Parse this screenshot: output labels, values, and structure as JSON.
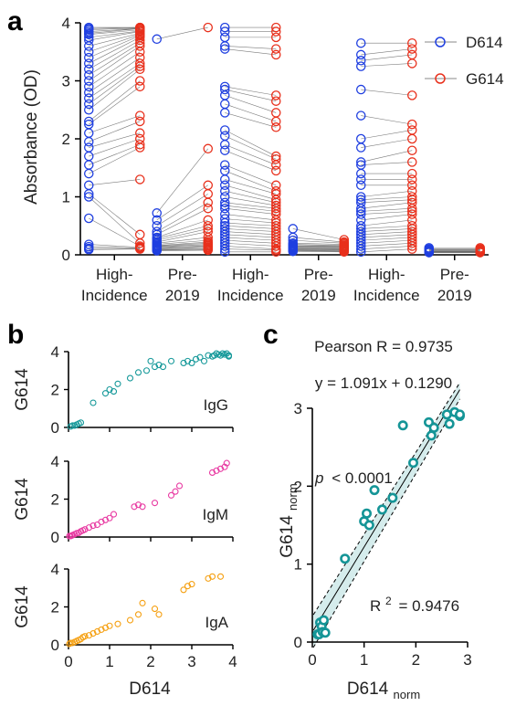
{
  "panels": {
    "a": {
      "letter": "a",
      "ylabel": "Absorbance (OD)",
      "yticks": [
        "0",
        "1",
        "2",
        "3",
        "4"
      ],
      "groups": [
        {
          "line1": "High-",
          "line2": "Incidence"
        },
        {
          "line1": "Pre-",
          "line2": "2019"
        },
        {
          "line1": "High-",
          "line2": "Incidence"
        },
        {
          "line1": "Pre-",
          "line2": "2019"
        },
        {
          "line1": "High-",
          "line2": "Incidence"
        },
        {
          "line1": "Pre-",
          "line2": "2019"
        }
      ],
      "legend": [
        "D614",
        "G614"
      ]
    },
    "b": {
      "letter": "b",
      "ylabel": "G614",
      "xlabel": "D614",
      "xticks": [
        "0",
        "1",
        "2",
        "3",
        "4"
      ],
      "yticks": [
        "0",
        "2",
        "4"
      ],
      "sub": [
        "IgG",
        "IgM",
        "IgA"
      ]
    },
    "c": {
      "letter": "c",
      "pearson": "Pearson R = 0.9735",
      "equation": "y = 1.091x + 0.1290",
      "p_label": "p",
      "p_value": "< 0.0001",
      "r2_label": "R",
      "r2_sup": "2",
      "r2_value": "= 0.9476",
      "ylabel_main": "G614",
      "ylabel_sub": "norm",
      "xlabel_main": "D614",
      "xlabel_sub": "norm",
      "xticks": [
        "0",
        "1",
        "2",
        "3"
      ],
      "yticks": [
        "0",
        "1",
        "2",
        "3"
      ]
    }
  },
  "colors": {
    "d614": "#1f3fe0",
    "g614": "#e8301c",
    "igg": "#16999a",
    "igm": "#e83aa2",
    "iga": "#f5a012",
    "teal": "#159597"
  },
  "chart_data": [
    {
      "type": "scatter",
      "panel": "a",
      "description_free": true,
      "ylabel": "Absorbance (OD)",
      "ylim": [
        0,
        4
      ],
      "categories": [
        "High-Incidence",
        "Pre-2019",
        "High-Incidence",
        "Pre-2019",
        "High-Incidence",
        "Pre-2019"
      ],
      "series": [
        {
          "name": "D614",
          "groups": [
            [
              3.92,
              3.9,
              3.88,
              3.85,
              3.82,
              3.8,
              3.75,
              3.7,
              3.6,
              3.5,
              3.4,
              3.3,
              3.2,
              3.1,
              3.0,
              2.9,
              2.8,
              2.7,
              2.6,
              2.5,
              2.3,
              2.25,
              2.1,
              1.95,
              1.85,
              1.7,
              1.55,
              1.4,
              1.2,
              1.05,
              1.0,
              0.63,
              0.18,
              0.14,
              0.11,
              0.09
            ],
            [
              3.72,
              0.72,
              0.6,
              0.5,
              0.4,
              0.35,
              0.3,
              0.28,
              0.25,
              0.22,
              0.2,
              0.18,
              0.16,
              0.15,
              0.14,
              0.13,
              0.12,
              0.11,
              0.1,
              0.09,
              0.08,
              0.07
            ],
            [
              3.92,
              3.85,
              3.75,
              3.6,
              3.55,
              2.9,
              2.85,
              2.75,
              2.6,
              2.45,
              2.15,
              2.05,
              1.9,
              1.8,
              1.55,
              1.45,
              1.3,
              1.2,
              1.1,
              1.0,
              0.9,
              0.85,
              0.8,
              0.7,
              0.62,
              0.55,
              0.5,
              0.45,
              0.4,
              0.35,
              0.3,
              0.25,
              0.2,
              0.15,
              0.1,
              0.05
            ],
            [
              0.45,
              0.3,
              0.25,
              0.2,
              0.18,
              0.16,
              0.15,
              0.14,
              0.13,
              0.12,
              0.11,
              0.1,
              0.09,
              0.08,
              0.07,
              0.06
            ],
            [
              3.65,
              3.45,
              3.35,
              3.25,
              2.85,
              2.4,
              2.0,
              1.85,
              1.6,
              1.55,
              1.4,
              1.3,
              1.2,
              1.0,
              0.95,
              0.9,
              0.8,
              0.75,
              0.7,
              0.6,
              0.5,
              0.45,
              0.4,
              0.35,
              0.3,
              0.25,
              0.2,
              0.15,
              0.1,
              0.05
            ],
            [
              0.12,
              0.1,
              0.09,
              0.08,
              0.07,
              0.06,
              0.05,
              0.05,
              0.04,
              0.04
            ]
          ]
        },
        {
          "name": "G614",
          "groups": [
            [
              3.92,
              3.92,
              3.91,
              3.9,
              3.9,
              3.88,
              3.86,
              3.85,
              3.82,
              3.8,
              3.78,
              3.75,
              3.7,
              3.65,
              3.6,
              3.5,
              3.4,
              3.3,
              3.25,
              3.2,
              3.0,
              2.9,
              2.4,
              2.3,
              2.1,
              2.0,
              1.9,
              1.85,
              1.3,
              0.35,
              0.2,
              0.15,
              0.13,
              0.12,
              0.11,
              0.1
            ],
            [
              3.92,
              1.83,
              1.2,
              1.05,
              0.9,
              0.8,
              0.6,
              0.5,
              0.45,
              0.4,
              0.3,
              0.25,
              0.22,
              0.2,
              0.18,
              0.16,
              0.15,
              0.13,
              0.12,
              0.1,
              0.09,
              0.08
            ],
            [
              3.92,
              3.85,
              3.75,
              3.55,
              3.45,
              2.75,
              2.65,
              2.45,
              2.3,
              2.2,
              1.7,
              1.65,
              1.55,
              1.45,
              1.2,
              1.1,
              1.05,
              0.95,
              0.9,
              0.85,
              0.8,
              0.75,
              0.7,
              0.6,
              0.55,
              0.5,
              0.45,
              0.4,
              0.35,
              0.3,
              0.25,
              0.2,
              0.15,
              0.1,
              0.08,
              0.05
            ],
            [
              0.26,
              0.22,
              0.2,
              0.18,
              0.16,
              0.15,
              0.14,
              0.13,
              0.12,
              0.11,
              0.1,
              0.09,
              0.08,
              0.07,
              0.06,
              0.05
            ],
            [
              3.65,
              3.55,
              3.45,
              3.3,
              2.75,
              2.25,
              2.15,
              2.0,
              1.8,
              1.6,
              1.4,
              1.3,
              1.2,
              1.1,
              1.0,
              0.95,
              0.9,
              0.8,
              0.75,
              0.7,
              0.6,
              0.5,
              0.45,
              0.4,
              0.35,
              0.3,
              0.25,
              0.2,
              0.15,
              0.1
            ],
            [
              0.12,
              0.1,
              0.09,
              0.08,
              0.07,
              0.06,
              0.05,
              0.05,
              0.04,
              0.04
            ]
          ]
        }
      ]
    },
    {
      "type": "scatter",
      "panel": "b",
      "xlabel": "D614",
      "ylabel": "G614",
      "xlim": [
        0,
        4
      ],
      "ylim": [
        0,
        4
      ],
      "series": [
        {
          "name": "IgG",
          "x": [
            0.05,
            0.1,
            0.15,
            0.2,
            0.25,
            0.3,
            0.6,
            0.9,
            1.0,
            1.1,
            1.2,
            1.5,
            1.7,
            1.9,
            2.0,
            2.1,
            2.2,
            2.3,
            2.5,
            2.8,
            2.9,
            3.0,
            3.1,
            3.2,
            3.3,
            3.4,
            3.5,
            3.55,
            3.6,
            3.65,
            3.7,
            3.75,
            3.8,
            3.85,
            3.9,
            3.9
          ],
          "y": [
            0.05,
            0.1,
            0.1,
            0.15,
            0.2,
            0.25,
            1.3,
            1.8,
            2.0,
            1.9,
            2.3,
            2.6,
            2.9,
            3.0,
            3.5,
            3.2,
            3.3,
            3.2,
            3.5,
            3.4,
            3.5,
            3.4,
            3.6,
            3.7,
            3.5,
            3.8,
            3.75,
            3.8,
            3.9,
            3.85,
            3.8,
            3.9,
            3.85,
            3.9,
            3.8,
            3.75
          ]
        },
        {
          "name": "IgM",
          "x": [
            0.02,
            0.05,
            0.08,
            0.1,
            0.15,
            0.2,
            0.25,
            0.3,
            0.35,
            0.4,
            0.5,
            0.6,
            0.7,
            0.8,
            0.9,
            1.0,
            1.1,
            1.6,
            1.7,
            1.8,
            2.1,
            2.5,
            2.6,
            2.7,
            3.5,
            3.6,
            3.7,
            3.8,
            3.85
          ],
          "y": [
            0.05,
            0.05,
            0.08,
            0.1,
            0.15,
            0.2,
            0.22,
            0.3,
            0.35,
            0.4,
            0.5,
            0.6,
            0.65,
            0.8,
            0.9,
            1.0,
            1.2,
            1.6,
            1.7,
            1.6,
            1.8,
            2.2,
            2.4,
            2.7,
            3.4,
            3.5,
            3.6,
            3.7,
            3.9
          ]
        },
        {
          "name": "IgA",
          "x": [
            0.02,
            0.05,
            0.1,
            0.15,
            0.2,
            0.25,
            0.3,
            0.35,
            0.4,
            0.5,
            0.6,
            0.7,
            0.8,
            0.9,
            1.0,
            1.2,
            1.5,
            1.7,
            1.8,
            2.1,
            2.2,
            2.8,
            2.9,
            3.0,
            3.4,
            3.5,
            3.7
          ],
          "y": [
            0.05,
            0.1,
            0.1,
            0.15,
            0.2,
            0.25,
            0.3,
            0.4,
            0.45,
            0.5,
            0.6,
            0.7,
            0.8,
            0.9,
            1.0,
            1.1,
            1.3,
            1.6,
            2.2,
            1.9,
            1.6,
            2.9,
            3.1,
            3.2,
            3.5,
            3.6,
            3.6
          ]
        }
      ]
    },
    {
      "type": "scatter",
      "panel": "c",
      "xlabel": "D614norm",
      "ylabel": "G614norm",
      "xlim": [
        0,
        3
      ],
      "ylim": [
        0,
        3
      ],
      "x": [
        0.1,
        0.13,
        0.15,
        0.18,
        0.2,
        0.22,
        0.25,
        0.63,
        1.0,
        1.05,
        1.1,
        1.2,
        1.35,
        1.55,
        1.75,
        1.95,
        2.25,
        2.3,
        2.35,
        2.6,
        2.65,
        2.75,
        2.85,
        2.85
      ],
      "y": [
        0.1,
        0.1,
        0.25,
        0.2,
        0.13,
        0.28,
        0.12,
        1.07,
        1.55,
        1.65,
        1.5,
        1.95,
        1.7,
        1.85,
        2.78,
        2.3,
        2.82,
        2.65,
        2.75,
        2.92,
        2.8,
        2.95,
        2.9,
        2.92
      ],
      "fit": {
        "slope": 1.091,
        "intercept": 0.129
      }
    }
  ]
}
